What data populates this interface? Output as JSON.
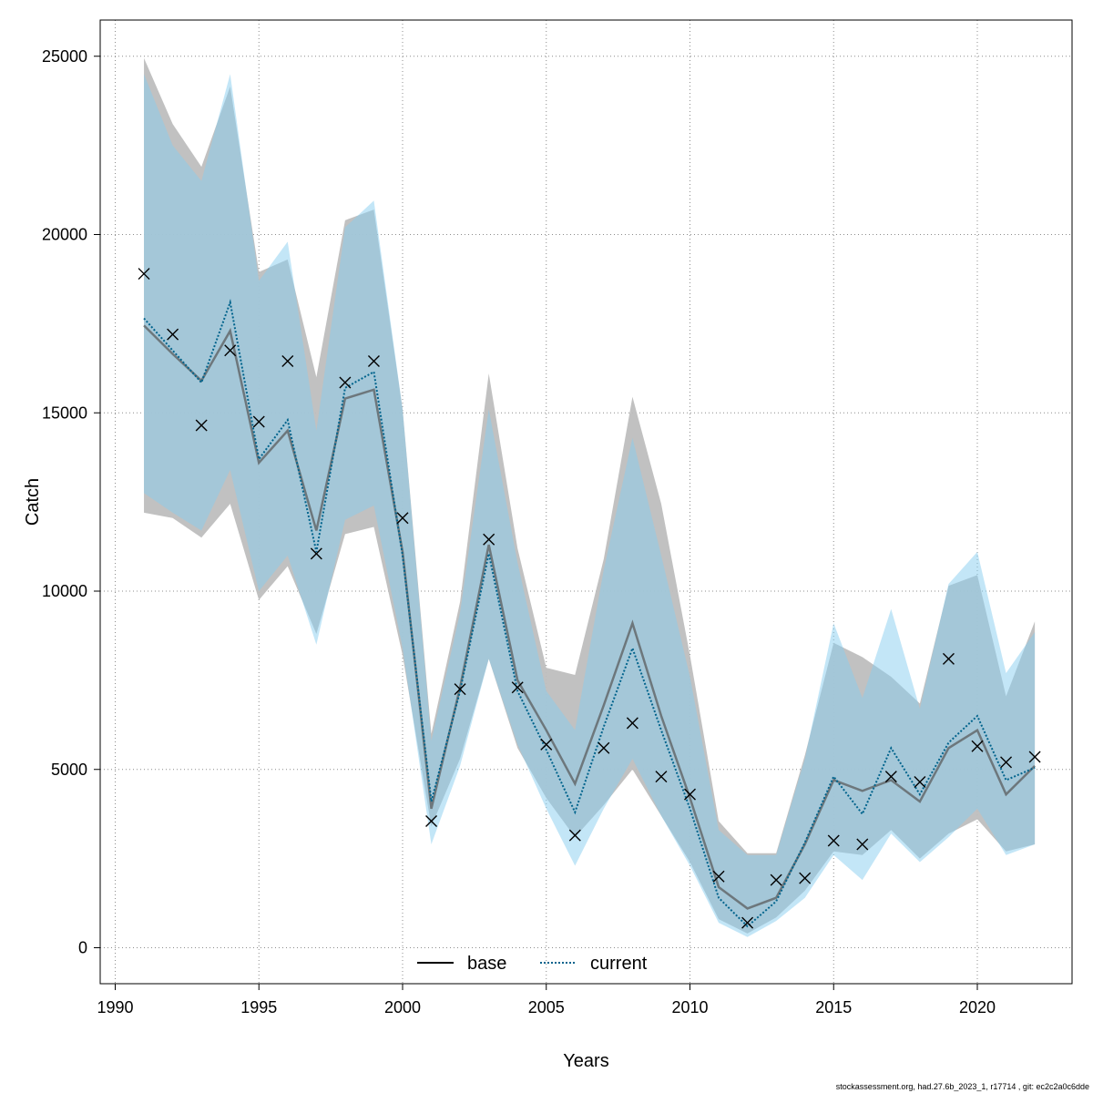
{
  "chart_data": {
    "type": "line",
    "xlabel": "Years",
    "ylabel": "Catch",
    "xlim": [
      1990,
      2023
    ],
    "ylim": [
      -1000,
      26000
    ],
    "xticks": [
      1990,
      1995,
      2000,
      2005,
      2010,
      2015,
      2020
    ],
    "yticks": [
      0,
      5000,
      10000,
      15000,
      20000,
      25000
    ],
    "grid": true,
    "legend_position": "bottom-center",
    "x": [
      1991,
      1992,
      1993,
      1994,
      1995,
      1996,
      1997,
      1998,
      1999,
      2000,
      2001,
      2002,
      2003,
      2004,
      2005,
      2006,
      2007,
      2008,
      2009,
      2010,
      2011,
      2012,
      2013,
      2014,
      2015,
      2016,
      2017,
      2018,
      2019,
      2020,
      2021,
      2022
    ],
    "series": [
      {
        "name": "base",
        "style": "solid",
        "color": "#000000",
        "band_color": "#bebebe",
        "values": [
          17450,
          16650,
          15900,
          17300,
          13600,
          14500,
          11700,
          15400,
          15650,
          11100,
          3900,
          7300,
          11300,
          7500,
          6100,
          4600,
          6800,
          9100,
          6500,
          4200,
          1700,
          1100,
          1400,
          2900,
          4700,
          4400,
          4700,
          4100,
          5600,
          6100,
          4300,
          5100
        ],
        "lower": [
          12200,
          12050,
          11500,
          12450,
          9750,
          10700,
          8800,
          11600,
          11800,
          8200,
          3400,
          5300,
          8100,
          5600,
          4200,
          3100,
          4000,
          5000,
          3700,
          2400,
          800,
          400,
          850,
          1600,
          2700,
          2600,
          3300,
          2500,
          3200,
          3600,
          2700,
          2900
        ],
        "upper": [
          24950,
          23100,
          21900,
          24150,
          18950,
          19300,
          16000,
          20400,
          20700,
          15100,
          6000,
          9700,
          16100,
          11200,
          7850,
          7650,
          10900,
          15450,
          12450,
          8200,
          3550,
          2650,
          2650,
          5400,
          8550,
          8150,
          7600,
          6850,
          10150,
          10450,
          7050,
          9150
        ]
      },
      {
        "name": "current",
        "style": "dotted",
        "color": "#00638c",
        "band_color": "#87cef0",
        "values": [
          17650,
          16750,
          15850,
          18100,
          13700,
          14800,
          11100,
          15700,
          16150,
          11000,
          4100,
          7200,
          11050,
          7200,
          5550,
          3800,
          6200,
          8400,
          6100,
          3900,
          1400,
          600,
          1300,
          2950,
          4800,
          3750,
          5600,
          4300,
          5750,
          6500,
          4700,
          5050
        ],
        "lower": [
          12750,
          12200,
          11700,
          13400,
          10000,
          11000,
          8500,
          12000,
          12400,
          8400,
          2900,
          5100,
          8100,
          5700,
          3900,
          2300,
          3900,
          5300,
          3700,
          2300,
          700,
          300,
          750,
          1400,
          2600,
          1900,
          3200,
          2400,
          3100,
          3900,
          2600,
          2900
        ],
        "upper": [
          24500,
          22500,
          21500,
          24500,
          18700,
          19800,
          14500,
          20200,
          20950,
          15100,
          5800,
          9400,
          15100,
          10800,
          7200,
          6100,
          10600,
          14300,
          11000,
          7600,
          3300,
          2600,
          2600,
          5300,
          9100,
          7000,
          9500,
          6700,
          10200,
          11100,
          7700,
          8850
        ]
      }
    ],
    "observed": {
      "x": [
        1991,
        1992,
        1993,
        1994,
        1995,
        1996,
        1997,
        1998,
        1999,
        2000,
        2001,
        2002,
        2003,
        2004,
        2005,
        2006,
        2007,
        2008,
        2009,
        2010,
        2011,
        2012,
        2013,
        2014,
        2015,
        2016,
        2017,
        2018,
        2019,
        2020,
        2021,
        2022
      ],
      "values": [
        18900,
        17200,
        14650,
        16750,
        14750,
        16450,
        11050,
        15850,
        16450,
        12050,
        3550,
        7250,
        11450,
        7300,
        5700,
        3150,
        5600,
        6300,
        4800,
        4300,
        2000,
        700,
        1900,
        1950,
        3000,
        2900,
        4800,
        4650,
        8100,
        5650,
        5200,
        5350
      ]
    }
  },
  "footer": "stockassessment.org, had.27.6b_2023_1, r17714 , git: ec2c2a0c6dde"
}
